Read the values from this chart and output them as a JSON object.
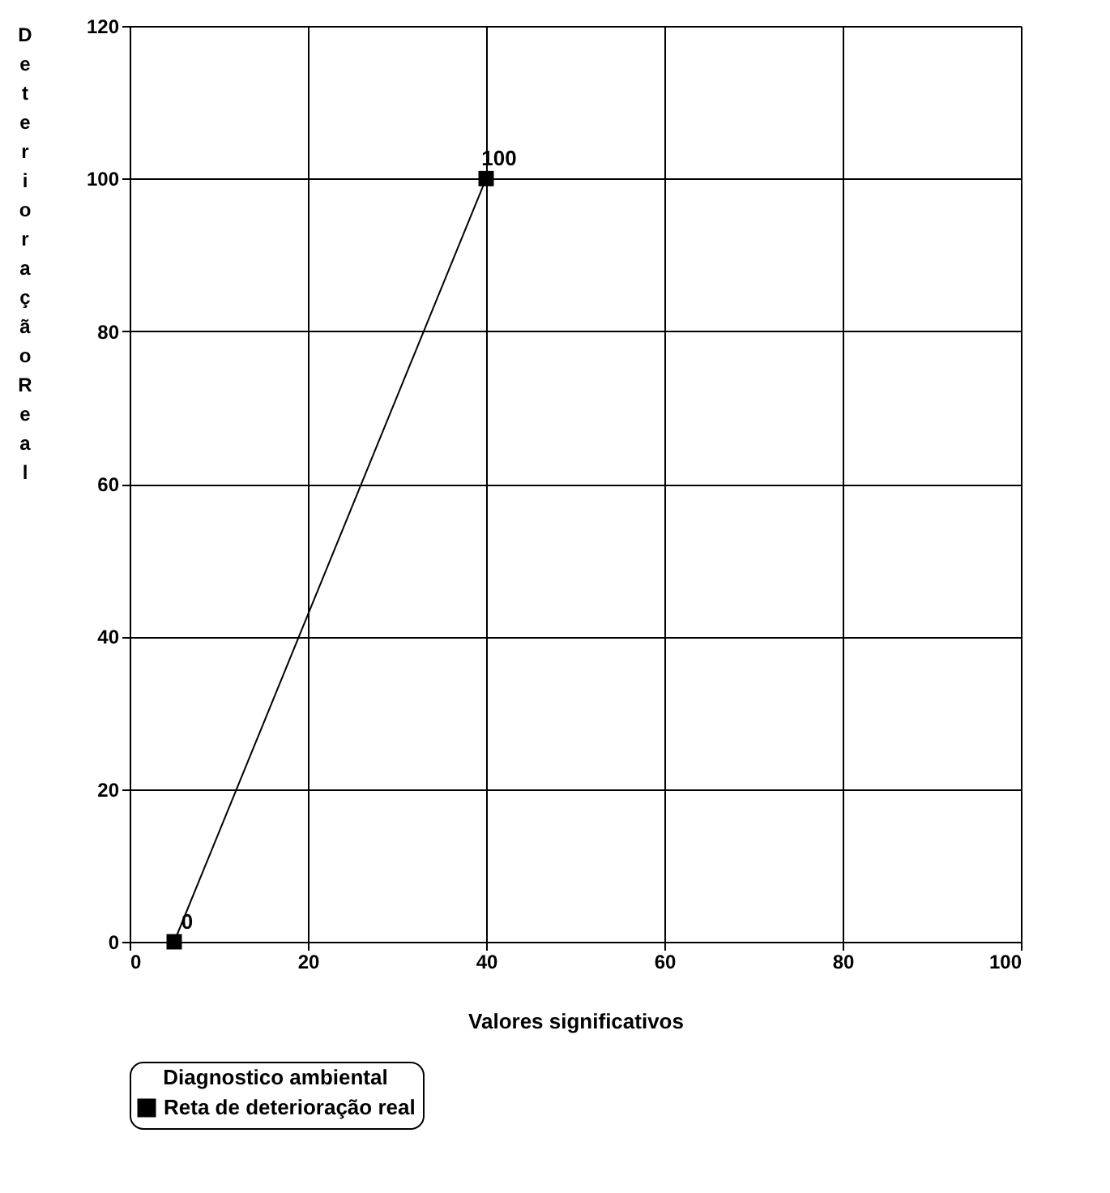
{
  "chart_data": {
    "type": "line",
    "xlabel": "Valores significativos",
    "ylabel": "Deterioração Real",
    "legend_title": "Diagnostico ambiental",
    "x": [
      5,
      40
    ],
    "series": [
      {
        "name": "Reta de deterioração real",
        "color": "#000000",
        "values": [
          0,
          100
        ]
      }
    ],
    "xlim": [
      0,
      100
    ],
    "xticks": [
      0,
      20,
      40,
      60,
      80,
      100
    ],
    "ylim": [
      0,
      120
    ],
    "yticks": [
      0,
      20,
      40,
      60,
      80,
      100,
      120
    ],
    "grid": true,
    "legend": "bottom",
    "marker": "square",
    "line_style": "solid",
    "data_labels": true
  }
}
